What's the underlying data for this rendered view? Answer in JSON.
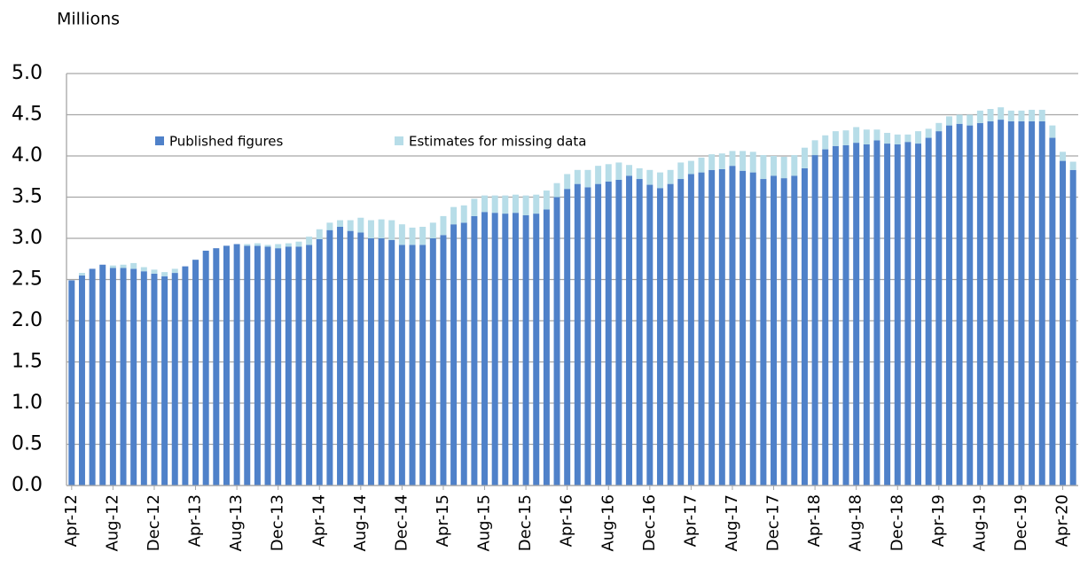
{
  "chart_data": {
    "type": "stacked_bar",
    "title": "Millions",
    "categories": [
      "Apr-12",
      null,
      null,
      null,
      "Aug-12",
      null,
      null,
      null,
      "Dec-12",
      null,
      null,
      null,
      "Apr-13",
      null,
      null,
      null,
      "Aug-13",
      null,
      null,
      null,
      "Dec-13",
      null,
      null,
      null,
      "Apr-14",
      null,
      null,
      null,
      "Aug-14",
      null,
      null,
      null,
      "Dec-14",
      null,
      null,
      null,
      "Apr-15",
      null,
      null,
      null,
      "Aug-15",
      null,
      null,
      null,
      "Dec-15",
      null,
      null,
      null,
      "Apr-16",
      null,
      null,
      null,
      "Aug-16",
      null,
      null,
      null,
      "Dec-16",
      null,
      null,
      null,
      "Apr-17",
      null,
      null,
      null,
      "Aug-17",
      null,
      null,
      null,
      "Dec-17",
      null,
      null,
      null,
      "Apr-18",
      null,
      null,
      null,
      "Aug-18",
      null,
      null,
      null,
      "Dec-18",
      null,
      null,
      null,
      "Apr-19",
      null,
      null,
      null,
      "Aug-19",
      null,
      null,
      null,
      "Dec-19",
      null,
      null,
      null,
      "Apr-20",
      null
    ],
    "series": [
      {
        "name": "Published figures",
        "color": "#4f81c9",
        "values": [
          2.49,
          2.55,
          2.63,
          2.68,
          2.64,
          2.64,
          2.63,
          2.6,
          2.57,
          2.54,
          2.58,
          2.66,
          2.74,
          2.85,
          2.88,
          2.91,
          2.93,
          2.91,
          2.91,
          2.9,
          2.88,
          2.9,
          2.9,
          2.92,
          2.99,
          3.1,
          3.14,
          3.09,
          3.07,
          3.0,
          3.0,
          2.98,
          2.92,
          2.92,
          2.92,
          3.0,
          3.04,
          3.17,
          3.19,
          3.27,
          3.32,
          3.31,
          3.3,
          3.31,
          3.28,
          3.3,
          3.35,
          3.5,
          3.6,
          3.66,
          3.62,
          3.66,
          3.69,
          3.71,
          3.76,
          3.72,
          3.65,
          3.61,
          3.66,
          3.72,
          3.78,
          3.8,
          3.83,
          3.84,
          3.88,
          3.82,
          3.8,
          3.72,
          3.76,
          3.73,
          3.76,
          3.85,
          4.01,
          4.08,
          4.12,
          4.13,
          4.16,
          4.14,
          4.19,
          4.15,
          4.14,
          4.17,
          4.15,
          4.22,
          4.3,
          4.37,
          4.39,
          4.37,
          4.4,
          4.42,
          4.44,
          4.42,
          4.42,
          4.42,
          4.42,
          4.22,
          3.94,
          3.83
        ]
      },
      {
        "name": "Estimates for missing data",
        "color": "#b7dde8",
        "values": [
          0,
          0.03,
          0,
          0,
          0.03,
          0.04,
          0.07,
          0.05,
          0.05,
          0.05,
          0.05,
          0,
          0,
          0,
          0,
          0,
          0,
          0.02,
          0.03,
          0.02,
          0.05,
          0.04,
          0.06,
          0.1,
          0.12,
          0.09,
          0.08,
          0.13,
          0.18,
          0.22,
          0.23,
          0.24,
          0.25,
          0.21,
          0.22,
          0.19,
          0.23,
          0.21,
          0.21,
          0.21,
          0.2,
          0.21,
          0.22,
          0.22,
          0.24,
          0.23,
          0.23,
          0.17,
          0.18,
          0.17,
          0.21,
          0.22,
          0.21,
          0.21,
          0.13,
          0.13,
          0.18,
          0.19,
          0.17,
          0.2,
          0.16,
          0.18,
          0.19,
          0.19,
          0.18,
          0.24,
          0.25,
          0.29,
          0.24,
          0.26,
          0.25,
          0.25,
          0.18,
          0.17,
          0.18,
          0.18,
          0.19,
          0.18,
          0.13,
          0.13,
          0.12,
          0.09,
          0.15,
          0.11,
          0.1,
          0.11,
          0.11,
          0.13,
          0.15,
          0.15,
          0.15,
          0.13,
          0.13,
          0.14,
          0.14,
          0.15,
          0.11,
          0.1
        ]
      }
    ],
    "ylim": [
      0,
      5
    ],
    "yticks": [
      {
        "value": 0,
        "label": "0.0"
      },
      0.5,
      {
        "value": 1,
        "label": "1.0"
      },
      1.5,
      {
        "value": 2,
        "label": "2.0"
      },
      2.5,
      {
        "value": 3,
        "label": "3.0"
      },
      3.5,
      {
        "value": 4,
        "label": "4.0"
      },
      4.5,
      {
        "value": 5,
        "label": "5.0"
      }
    ],
    "grid": true
  }
}
